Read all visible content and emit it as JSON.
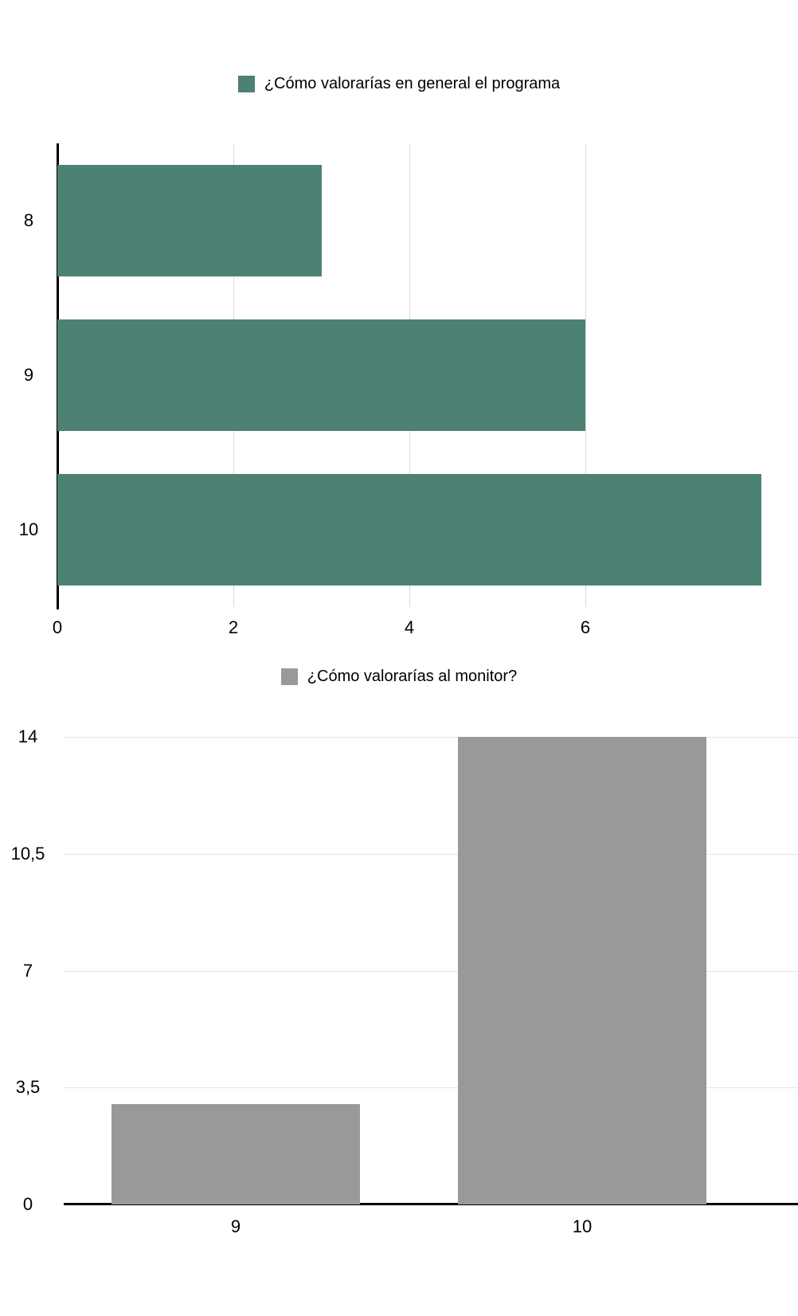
{
  "chart_data": [
    {
      "type": "bar",
      "orientation": "horizontal",
      "legend": "¿Cómo valorarías en general el programa",
      "categories": [
        "8",
        "9",
        "10"
      ],
      "values": [
        3,
        6,
        8
      ],
      "x_tick_values": [
        0,
        2,
        4,
        6
      ],
      "x_tick_labels": [
        "0",
        "2",
        "4",
        "6"
      ],
      "xlim": [
        0,
        8.4
      ],
      "color": "#4d8174",
      "gridline_color": "#d9d9d9",
      "legend_position": "top",
      "grid": true
    },
    {
      "type": "bar",
      "orientation": "vertical",
      "legend": "¿Cómo valorarías al monitor?",
      "categories": [
        "9",
        "10"
      ],
      "values": [
        3,
        14
      ],
      "y_tick_values": [
        0,
        3.5,
        7,
        10.5,
        14
      ],
      "y_tick_labels": [
        "0",
        "3,5",
        "7",
        "10,5",
        "14"
      ],
      "ylim": [
        0,
        14
      ],
      "color": "#999999",
      "gridline_color": "#e4e4e4",
      "legend_position": "top",
      "grid": true
    }
  ]
}
